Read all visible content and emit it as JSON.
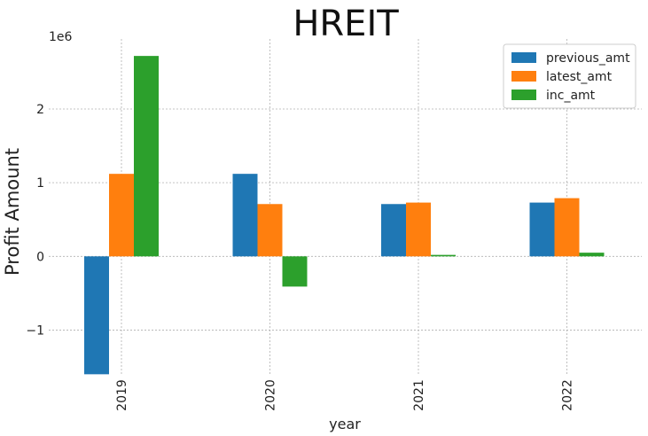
{
  "chart_data": {
    "type": "bar",
    "title": "HREIT",
    "xlabel": "year",
    "ylabel": "Profit Amount",
    "y_offset_text": "1e6",
    "categories": [
      "2019",
      "2020",
      "2021",
      "2022"
    ],
    "series": [
      {
        "name": "previous_amt",
        "color": "#1f77b4",
        "values": [
          -1600000,
          1120000,
          710000,
          730000
        ]
      },
      {
        "name": "latest_amt",
        "color": "#ff7f0e",
        "values": [
          1120000,
          710000,
          730000,
          790000
        ]
      },
      {
        "name": "inc_amt",
        "color": "#2ca02c",
        "values": [
          2720000,
          -410000,
          20000,
          50000
        ]
      }
    ],
    "yticks": [
      -1,
      0,
      1,
      2
    ],
    "ytick_labels": [
      "−1",
      "0",
      "1",
      "2"
    ],
    "ytick_scale": 1000000,
    "ylim": [
      -1.62,
      2.95
    ],
    "grid": true,
    "legend": "top-right"
  }
}
